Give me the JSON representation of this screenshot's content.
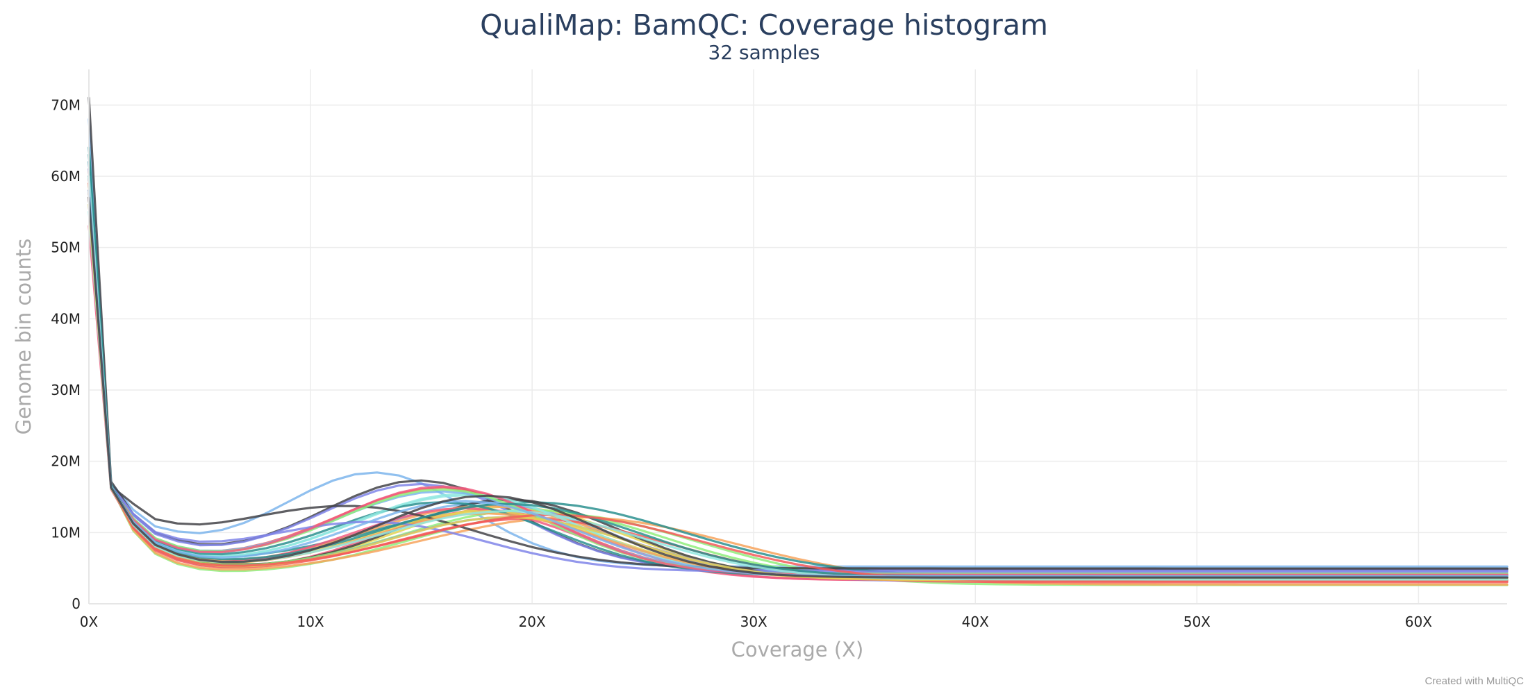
{
  "chart_data": {
    "type": "line",
    "title": "QualiMap: BamQC: Coverage histogram",
    "subtitle": "32 samples",
    "xlabel": "Coverage (X)",
    "ylabel": "Genome bin counts",
    "xlim": [
      0,
      64
    ],
    "ylim": [
      0,
      75000000
    ],
    "x_ticks": [
      0,
      10,
      20,
      30,
      40,
      50,
      60
    ],
    "x_tick_labels": [
      "0X",
      "10X",
      "20X",
      "30X",
      "40X",
      "50X",
      "60X"
    ],
    "y_ticks": [
      0,
      10000000,
      20000000,
      30000000,
      40000000,
      50000000,
      60000000,
      70000000
    ],
    "y_tick_labels": [
      "0",
      "10M",
      "20M",
      "30M",
      "40M",
      "50M",
      "60M",
      "70M"
    ],
    "grid": true,
    "legend": "none",
    "credit": "Created with MultiQC",
    "series": [
      {
        "color": "#7cb5ec",
        "y0": 68000000,
        "min": 9500000,
        "peak_x": 13,
        "peak": 18000000,
        "sd": 4.2
      },
      {
        "color": "#434348",
        "y0": 71000000,
        "min": 8800000,
        "peak_x": 15,
        "peak": 17000000,
        "sd": 4.5
      },
      {
        "color": "#90ed7d",
        "y0": 58000000,
        "min": 4800000,
        "peak_x": 21,
        "peak": 12500000,
        "sd": 6.5
      },
      {
        "color": "#f7a35c",
        "y0": 60000000,
        "min": 4900000,
        "peak_x": 22,
        "peak": 12000000,
        "sd": 7.2
      },
      {
        "color": "#8085e9",
        "y0": 62000000,
        "min": 8500000,
        "peak_x": 15,
        "peak": 16500000,
        "sd": 4.6
      },
      {
        "color": "#f15c80",
        "y0": 53000000,
        "min": 6000000,
        "peak_x": 18,
        "peak": 13000000,
        "sd": 5.0
      },
      {
        "color": "#e4d354",
        "y0": 57000000,
        "min": 6500000,
        "peak_x": 19,
        "peak": 13500000,
        "sd": 5.2
      },
      {
        "color": "#2b908f",
        "y0": 64000000,
        "min": 6800000,
        "peak_x": 20,
        "peak": 14000000,
        "sd": 6.8
      },
      {
        "color": "#f45b5b",
        "y0": 61000000,
        "min": 7500000,
        "peak_x": 16,
        "peak": 16000000,
        "sd": 5.0
      },
      {
        "color": "#91e8e1",
        "y0": 59000000,
        "min": 7000000,
        "peak_x": 17,
        "peak": 15000000,
        "sd": 5.2
      },
      {
        "color": "#7cb5ec",
        "y0": 60000000,
        "min": 6200000,
        "peak_x": 18,
        "peak": 14000000,
        "sd": 5.5
      },
      {
        "color": "#434348",
        "y0": 58000000,
        "min": 6700000,
        "peak_x": 19,
        "peak": 14500000,
        "sd": 5.0
      },
      {
        "color": "#90ed7d",
        "y0": 57000000,
        "min": 6000000,
        "peak_x": 20,
        "peak": 13000000,
        "sd": 6.0
      },
      {
        "color": "#f7a35c",
        "y0": 59000000,
        "min": 6400000,
        "peak_x": 18,
        "peak": 13500000,
        "sd": 5.6
      },
      {
        "color": "#8085e9",
        "y0": 56000000,
        "min": 5800000,
        "peak_x": 19,
        "peak": 12000000,
        "sd": 5.6
      },
      {
        "color": "#f15c80",
        "y0": 60000000,
        "min": 6100000,
        "peak_x": 17,
        "peak": 13200000,
        "sd": 5.2
      },
      {
        "color": "#e4d354",
        "y0": 61000000,
        "min": 6300000,
        "peak_x": 18,
        "peak": 12800000,
        "sd": 5.4
      },
      {
        "color": "#2b908f",
        "y0": 63000000,
        "min": 7200000,
        "peak_x": 16,
        "peak": 14000000,
        "sd": 5.0
      },
      {
        "color": "#f45b5b",
        "y0": 58000000,
        "min": 5500000,
        "peak_x": 20,
        "peak": 11800000,
        "sd": 6.2
      },
      {
        "color": "#91e8e1",
        "y0": 55000000,
        "min": 6900000,
        "peak_x": 17,
        "peak": 15200000,
        "sd": 5.2
      },
      {
        "color": "#7cb5ec",
        "y0": 57000000,
        "min": 7600000,
        "peak_x": 16,
        "peak": 15500000,
        "sd": 5.0
      },
      {
        "color": "#434348",
        "y0": 60000000,
        "min": 9000000,
        "peak_x": 12,
        "peak": 13000000,
        "sd": 5.5
      },
      {
        "color": "#90ed7d",
        "y0": 59000000,
        "min": 7800000,
        "peak_x": 16,
        "peak": 15800000,
        "sd": 4.8
      },
      {
        "color": "#f7a35c",
        "y0": 58000000,
        "min": 6600000,
        "peak_x": 18,
        "peak": 12500000,
        "sd": 5.3
      },
      {
        "color": "#8085e9",
        "y0": 61000000,
        "min": 8200000,
        "peak_x": 13,
        "peak": 11000000,
        "sd": 5.0
      },
      {
        "color": "#f15c80",
        "y0": 57000000,
        "min": 7400000,
        "peak_x": 16,
        "peak": 16200000,
        "sd": 4.9
      },
      {
        "color": "#e4d354",
        "y0": 56000000,
        "min": 6000000,
        "peak_x": 19,
        "peak": 12000000,
        "sd": 5.5
      },
      {
        "color": "#2b908f",
        "y0": 62000000,
        "min": 6900000,
        "peak_x": 19,
        "peak": 13800000,
        "sd": 5.8
      },
      {
        "color": "#f45b5b",
        "y0": 59000000,
        "min": 5800000,
        "peak_x": 21,
        "peak": 12300000,
        "sd": 6.6
      },
      {
        "color": "#91e8e1",
        "y0": 60000000,
        "min": 6200000,
        "peak_x": 19,
        "peak": 12800000,
        "sd": 6.0
      },
      {
        "color": "#7cb5ec",
        "y0": 58000000,
        "min": 7000000,
        "peak_x": 17,
        "peak": 14200000,
        "sd": 5.1
      },
      {
        "color": "#434348",
        "y0": 57000000,
        "min": 6700000,
        "peak_x": 18,
        "peak": 15000000,
        "sd": 5.0
      }
    ]
  }
}
